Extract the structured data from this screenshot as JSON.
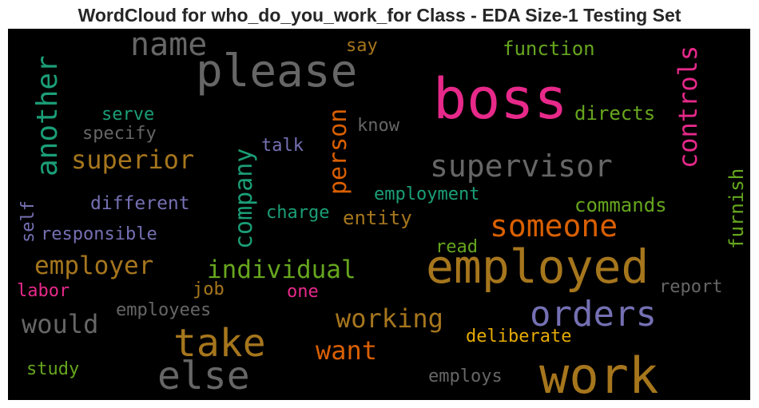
{
  "chart_data": {
    "type": "wordcloud",
    "title": "WordCloud for who_do_you_work_for Class - EDA Size-1 Testing Set",
    "background": "#000000",
    "words": [
      {
        "text": "please",
        "color": "#666666"
      },
      {
        "text": "boss",
        "color": "#e7298a"
      },
      {
        "text": "work",
        "color": "#a6761d"
      },
      {
        "text": "employed",
        "color": "#a6761d"
      },
      {
        "text": "name",
        "color": "#666666"
      },
      {
        "text": "another",
        "color": "#1b9e77"
      },
      {
        "text": "supervisor",
        "color": "#666666"
      },
      {
        "text": "controls",
        "color": "#e7298a"
      },
      {
        "text": "orders",
        "color": "#7570b3"
      },
      {
        "text": "take",
        "color": "#a6761d"
      },
      {
        "text": "else",
        "color": "#666666"
      },
      {
        "text": "someone",
        "color": "#d95f02"
      },
      {
        "text": "superior",
        "color": "#a6761d"
      },
      {
        "text": "person",
        "color": "#d95f02"
      },
      {
        "text": "company",
        "color": "#1b9e77"
      },
      {
        "text": "individual",
        "color": "#66a61e"
      },
      {
        "text": "employer",
        "color": "#a6761d"
      },
      {
        "text": "working",
        "color": "#a6761d"
      },
      {
        "text": "want",
        "color": "#d95f02"
      },
      {
        "text": "would",
        "color": "#666666"
      },
      {
        "text": "function",
        "color": "#66a61e"
      },
      {
        "text": "directs",
        "color": "#66a61e"
      },
      {
        "text": "commands",
        "color": "#66a61e"
      },
      {
        "text": "furnish",
        "color": "#66a61e"
      },
      {
        "text": "employment",
        "color": "#1b9e77"
      },
      {
        "text": "entity",
        "color": "#a6761d"
      },
      {
        "text": "charge",
        "color": "#1b9e77"
      },
      {
        "text": "different",
        "color": "#7570b3"
      },
      {
        "text": "responsible",
        "color": "#7570b3"
      },
      {
        "text": "serve",
        "color": "#1b9e77"
      },
      {
        "text": "specify",
        "color": "#666666"
      },
      {
        "text": "talk",
        "color": "#7570b3"
      },
      {
        "text": "know",
        "color": "#666666"
      },
      {
        "text": "say",
        "color": "#a6761d"
      },
      {
        "text": "self",
        "color": "#7570b3"
      },
      {
        "text": "read",
        "color": "#66a61e"
      },
      {
        "text": "report",
        "color": "#666666"
      },
      {
        "text": "deliberate",
        "color": "#e6ab02"
      },
      {
        "text": "employs",
        "color": "#666666"
      },
      {
        "text": "study",
        "color": "#66a61e"
      },
      {
        "text": "labor",
        "color": "#e7298a"
      },
      {
        "text": "job",
        "color": "#a6761d"
      },
      {
        "text": "one",
        "color": "#e7298a"
      },
      {
        "text": "employees",
        "color": "#666666"
      }
    ]
  }
}
